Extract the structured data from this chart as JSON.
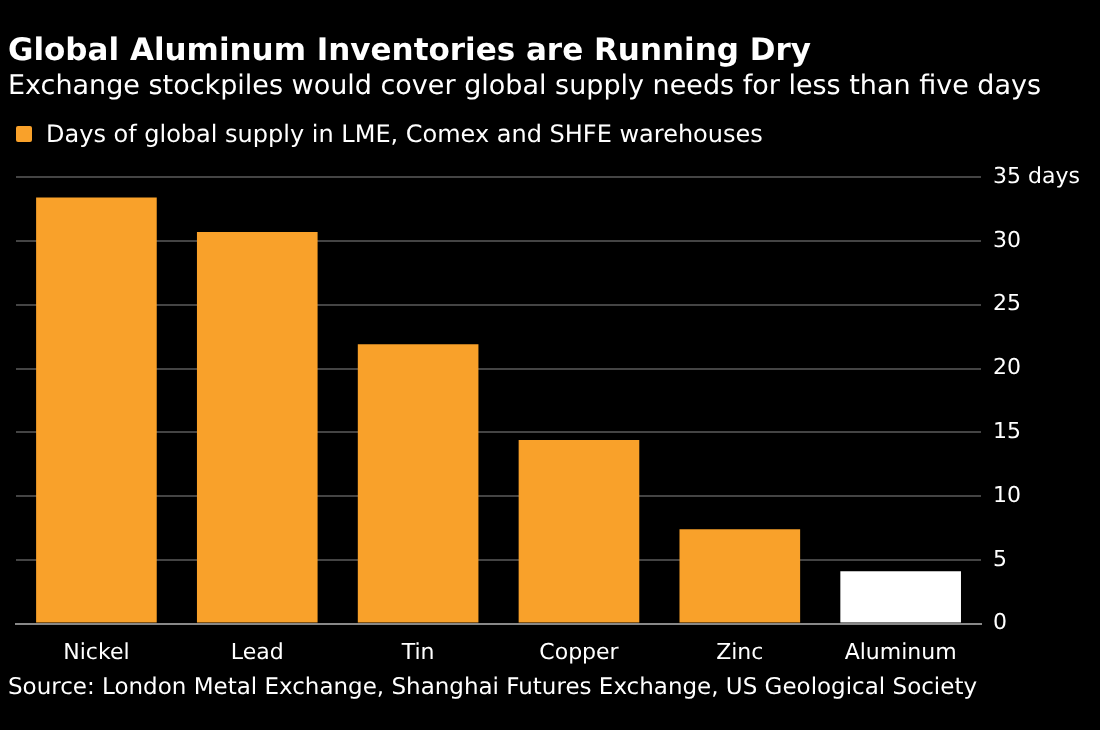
{
  "chart_data": {
    "type": "bar",
    "title": "Global Aluminum Inventories are Running Dry",
    "subtitle": "Exchange stockpiles would cover global supply needs for less than five days",
    "categories": [
      "Nickel",
      "Lead",
      "Tin",
      "Copper",
      "Zinc",
      "Aluminum"
    ],
    "series": [
      {
        "name": "Days of global supply in LME, Comex and SHFE warehouses",
        "color": "#f9a12a",
        "colors": [
          "#f9a12a",
          "#f9a12a",
          "#f9a12a",
          "#f9a12a",
          "#f9a12a",
          "#ffffff"
        ],
        "values": [
          33.4,
          30.7,
          21.9,
          14.4,
          7.4,
          4.1
        ]
      }
    ],
    "ylim": [
      0,
      35
    ],
    "yticks": [
      0,
      5,
      10,
      15,
      20,
      25,
      30,
      {
        "value": 35,
        "label": "35 days"
      }
    ],
    "grid": "y",
    "legend": "top left",
    "annotations": [
      "Source: London Metal Exchange, Shanghai Futures Exchange, US Geological Society"
    ]
  }
}
